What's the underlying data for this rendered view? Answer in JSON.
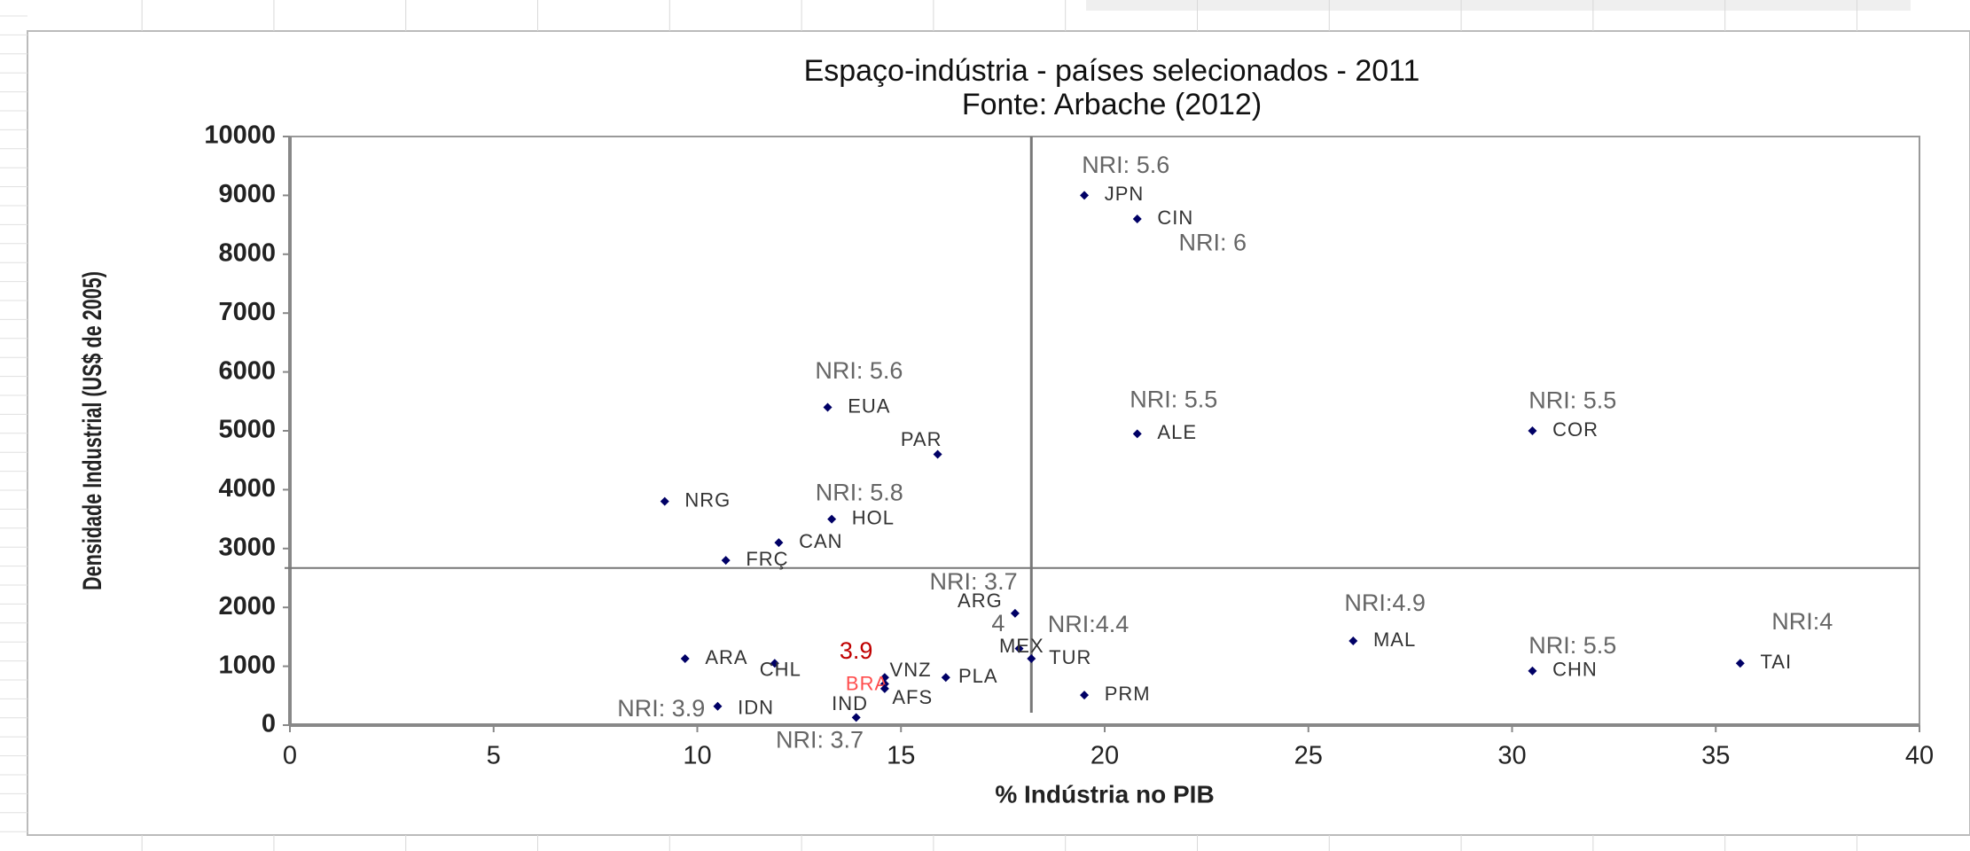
{
  "chart_data": {
    "type": "scatter",
    "title": "Espaço-indústria - países selecionados - 2011",
    "subtitle": "Fonte: Arbache (2012)",
    "x_label": "% Indústria no PIB",
    "y_label": "Densidade Industrial (US$ de 2005)",
    "point_labels": [
      "JPN",
      "CIN",
      "EUA",
      "PAR",
      "ALE",
      "COR",
      "NRG",
      "HOL",
      "CAN",
      "FRÇ",
      "ARG",
      "MEX",
      "TUR",
      "MAL",
      "CHN",
      "TAI",
      "ARA",
      "CHL",
      "VNZ",
      "PLA",
      "BRA",
      "AFS",
      "IND",
      "IDN",
      "PRM"
    ],
    "x": [
      19.5,
      20.8,
      13.2,
      15.9,
      20.8,
      30.5,
      9.2,
      13.3,
      12.0,
      10.7,
      17.8,
      17.9,
      18.2,
      26.1,
      30.5,
      35.6,
      9.7,
      11.9,
      14.6,
      16.1,
      14.6,
      14.6,
      13.9,
      10.5,
      19.5
    ],
    "values": [
      9000,
      8600,
      5400,
      4600,
      4950,
      5000,
      3800,
      3500,
      3100,
      2800,
      1900,
      1300,
      1130,
      1430,
      920,
      1050,
      1130,
      1050,
      810,
      810,
      700,
      620,
      130,
      320,
      510
    ],
    "point_color": "#000066",
    "point_label_colors": [
      "#333333",
      "#333333",
      "#333333",
      "#333333",
      "#333333",
      "#333333",
      "#333333",
      "#333333",
      "#333333",
      "#333333",
      "#333333",
      "#333333",
      "#333333",
      "#333333",
      "#333333",
      "#333333",
      "#333333",
      "#333333",
      "#333333",
      "#333333",
      "#ff4d4d",
      "#333333",
      "#333333",
      "#333333",
      "#333333"
    ],
    "annotations": [
      {
        "text": "NRI: 5.6",
        "color": "#666666"
      },
      {
        "text": "NRI: 6",
        "color": "#666666"
      },
      {
        "text": "NRI: 5.6",
        "color": "#666666"
      },
      {
        "text": "NRI: 5.5",
        "color": "#666666"
      },
      {
        "text": "NRI: 5.5",
        "color": "#666666"
      },
      {
        "text": "NRI: 5.8",
        "color": "#666666"
      },
      {
        "text": "NRI: 3.7",
        "color": "#666666"
      },
      {
        "text": "4",
        "color": "#666666"
      },
      {
        "text": "NRI:4.4",
        "color": "#666666"
      },
      {
        "text": "NRI:4.9",
        "color": "#666666"
      },
      {
        "text": "NRI: 5.5",
        "color": "#666666"
      },
      {
        "text": "NRI:4",
        "color": "#666666"
      },
      {
        "text": "3.9",
        "color": "#c00000"
      },
      {
        "text": "NRI: 3.9",
        "color": "#666666"
      },
      {
        "text": "NRI: 3.7",
        "color": "#666666"
      }
    ],
    "vline": 18.2,
    "hline": 2670,
    "xlim": [
      0,
      40
    ],
    "xticks": [
      0,
      5,
      10,
      15,
      20,
      25,
      30,
      35,
      40
    ],
    "ylim": [
      0,
      10000
    ],
    "yticks": [
      0,
      1000,
      2000,
      3000,
      4000,
      5000,
      6000,
      7000,
      8000,
      9000,
      10000
    ],
    "grid": false
  }
}
